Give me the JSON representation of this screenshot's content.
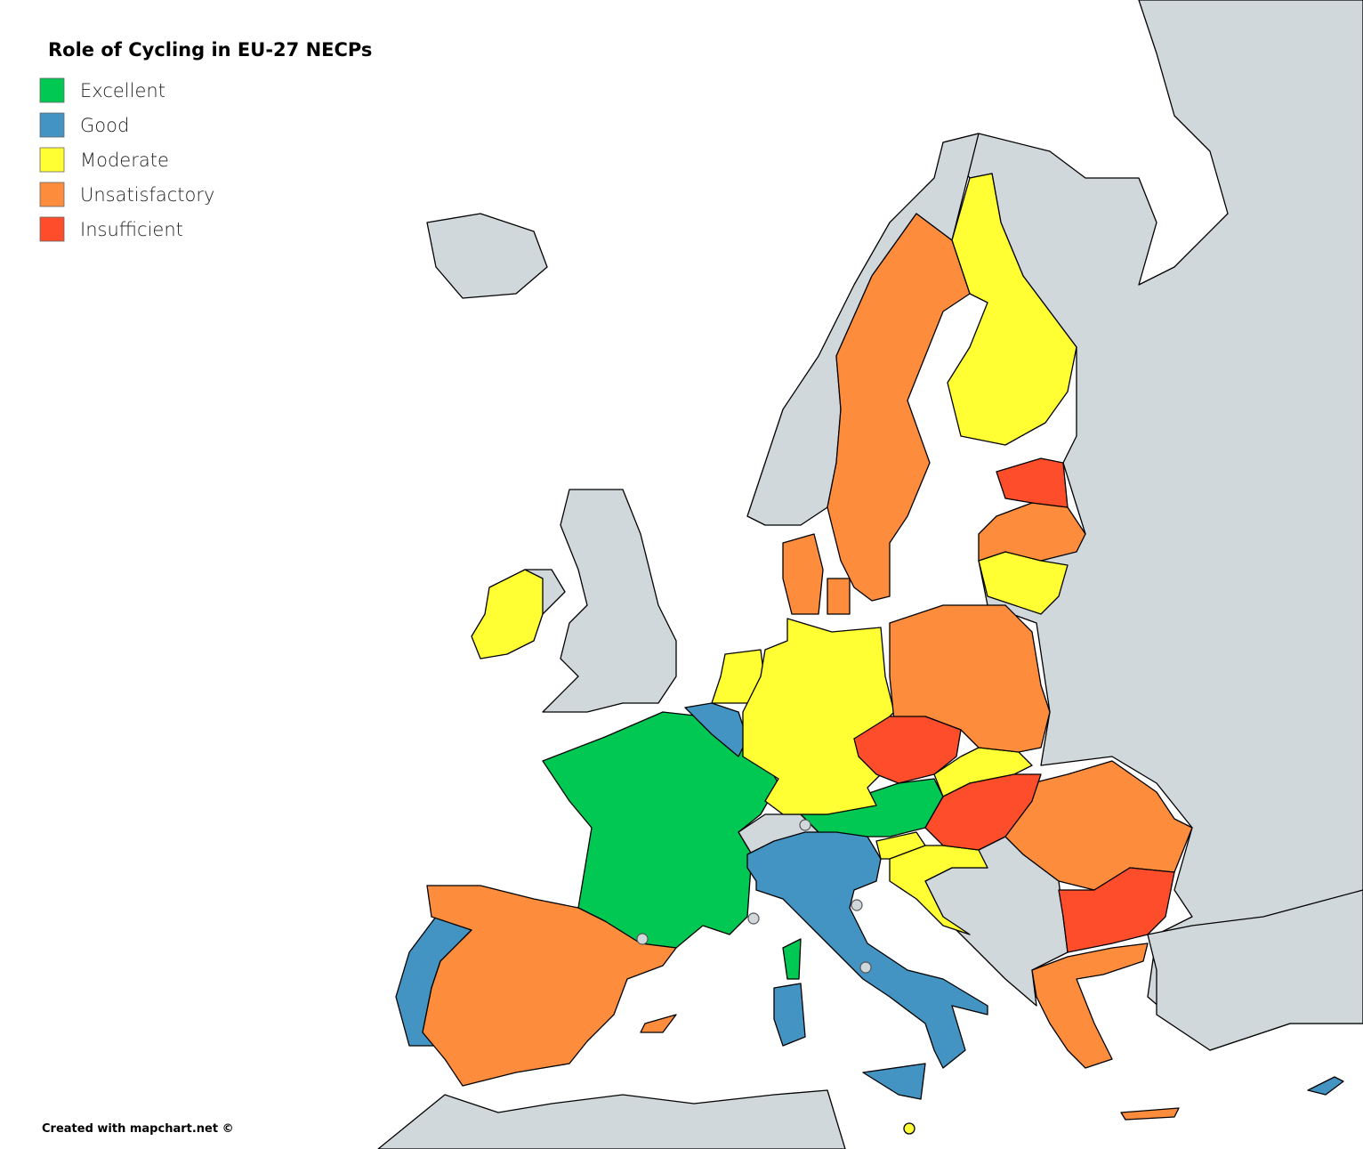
{
  "title": "Role of Cycling in EU-27 NECPs",
  "legend": [
    {
      "label": "Excellent",
      "color": "#00c853"
    },
    {
      "label": "Good",
      "color": "#4393c3"
    },
    {
      "label": "Moderate",
      "color": "#ffff33"
    },
    {
      "label": "Unsatisfactory",
      "color": "#fd8c3c"
    },
    {
      "label": "Insufficient",
      "color": "#fd4d2b"
    }
  ],
  "credit": "Created with mapchart.net ©"
}
